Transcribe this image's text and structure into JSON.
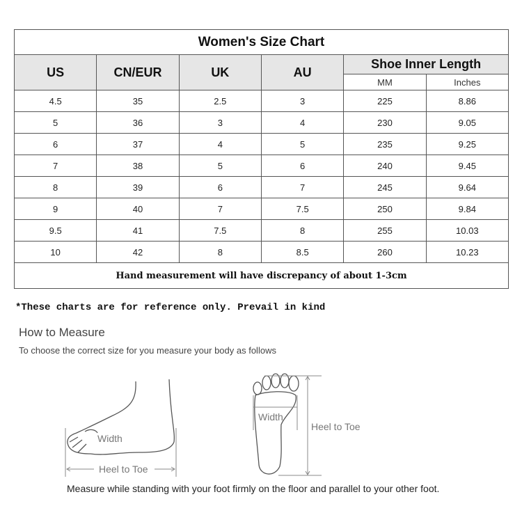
{
  "title": "Women's Size Chart",
  "headers": {
    "us": "US",
    "cn_eur": "CN/EUR",
    "uk": "UK",
    "au": "AU",
    "length_group": "Shoe Inner Length",
    "mm": "MM",
    "inches": "Inches"
  },
  "rows": [
    [
      "4.5",
      "35",
      "2.5",
      "3",
      "225",
      "8.86"
    ],
    [
      "5",
      "36",
      "3",
      "4",
      "230",
      "9.05"
    ],
    [
      "6",
      "37",
      "4",
      "5",
      "235",
      "9.25"
    ],
    [
      "7",
      "38",
      "5",
      "6",
      "240",
      "9.45"
    ],
    [
      "8",
      "39",
      "6",
      "7",
      "245",
      "9.64"
    ],
    [
      "9",
      "40",
      "7",
      "7.5",
      "250",
      "9.84"
    ],
    [
      "9.5",
      "41",
      "7.5",
      "8",
      "255",
      "10.03"
    ],
    [
      "10",
      "42",
      "8",
      "8.5",
      "260",
      "10.23"
    ]
  ],
  "table_note": "Hand measurement will have discrepancy of about 1-3cm",
  "reference_note": "*These charts are for reference only. Prevail in kind",
  "how_to": {
    "title": "How to Measure",
    "subtitle": "To choose the correct size for you measure your body as follows",
    "side_width_label": "Width",
    "side_length_label": "Heel to Toe",
    "sole_width_label": "Width",
    "sole_length_label": "Heel to Toe",
    "instruction": "Measure while standing with your foot firmly on the floor and parallel to your other foot."
  }
}
